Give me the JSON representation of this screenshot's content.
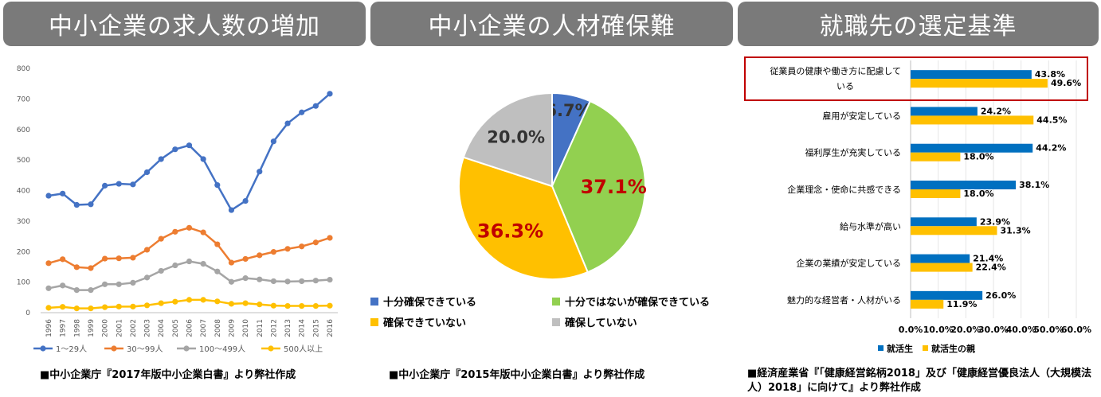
{
  "panels": [
    {
      "title": "中小企業の求人数の増加",
      "source": "■中小企業庁『2017年版中小企業白書』より弊社作成"
    },
    {
      "title": "中小企業の人材確保難",
      "source": "■中小企業庁『2015年版中小企業白書』より弊社作成"
    },
    {
      "title": "就職先の選定基準",
      "source": "■経済産業省『「健康経営銘柄2018」及び「健康経営優良法人（大規模法人）2018」に向けて』より弊社作成"
    }
  ],
  "chart_data": [
    {
      "type": "line",
      "x": [
        "1996",
        "1997",
        "1998",
        "1999",
        "2000",
        "2001",
        "2002",
        "2003",
        "2004",
        "2005",
        "2006",
        "2007",
        "2008",
        "2009",
        "2010",
        "2011",
        "2012",
        "2013",
        "2014",
        "2015",
        "2016"
      ],
      "ylim": [
        0,
        800
      ],
      "yticks": [
        0,
        100,
        200,
        300,
        400,
        500,
        600,
        700,
        800
      ],
      "grid": false,
      "legend": "bottom",
      "series": [
        {
          "name": "1〜29人",
          "color": "#4472c4",
          "values": [
            383,
            390,
            353,
            355,
            416,
            422,
            420,
            460,
            503,
            535,
            548,
            503,
            418,
            336,
            366,
            462,
            561,
            620,
            656,
            677,
            717
          ]
        },
        {
          "name": "30〜99人",
          "color": "#ed7d31",
          "values": [
            162,
            175,
            149,
            146,
            177,
            178,
            180,
            206,
            242,
            265,
            278,
            263,
            224,
            164,
            176,
            188,
            199,
            209,
            217,
            230,
            245
          ]
        },
        {
          "name": "100〜499人",
          "color": "#a5a5a5",
          "values": [
            80,
            89,
            74,
            74,
            93,
            93,
            98,
            115,
            137,
            155,
            168,
            160,
            135,
            101,
            113,
            109,
            103,
            102,
            103,
            105,
            108
          ]
        },
        {
          "name": "500人以上",
          "color": "#ffc000",
          "values": [
            16,
            19,
            14,
            14,
            18,
            20,
            20,
            24,
            31,
            36,
            42,
            42,
            37,
            29,
            31,
            27,
            23,
            22,
            22,
            22,
            23
          ]
        }
      ]
    },
    {
      "type": "pie",
      "legend": "bottom",
      "slices": [
        {
          "label": "十分確保できている",
          "value": 6.7,
          "display": "6.7%",
          "color": "#4472c4",
          "labelColor": "#333333"
        },
        {
          "label": "十分ではないが確保できている",
          "value": 37.1,
          "display": "37.1%",
          "color": "#92d050",
          "labelColor": "#c00000"
        },
        {
          "label": "確保できていない",
          "value": 36.3,
          "display": "36.3%",
          "color": "#ffc000",
          "labelColor": "#c00000"
        },
        {
          "label": "確保していない",
          "value": 20.0,
          "display": "20.0%",
          "color": "#bfbfbf",
          "labelColor": "#333333"
        }
      ]
    },
    {
      "type": "bar",
      "orientation": "horizontal",
      "xlim": [
        0,
        60
      ],
      "xticks": [
        "0.0%",
        "10.0%",
        "20.0%",
        "30.0%",
        "40.0%",
        "50.0%",
        "60.0%"
      ],
      "legend": "bottom",
      "highlight_color": "#c00000",
      "categories": [
        [
          "従業員の健康や働き方に配慮して",
          "いる"
        ],
        [
          "雇用が安定している"
        ],
        [
          "福利厚生が充実している"
        ],
        [
          "企業理念・使命に共感できる"
        ],
        [
          "給与水準が高い"
        ],
        [
          "企業の業績が安定している"
        ],
        [
          "魅力的な経営者・人材がいる"
        ]
      ],
      "series": [
        {
          "name": "就活生",
          "color": "#0070c0",
          "values": [
            43.8,
            24.2,
            44.2,
            38.1,
            23.9,
            21.4,
            26.0
          ],
          "labels": [
            "43.8%",
            "24.2%",
            "44.2%",
            "38.1%",
            "23.9%",
            "21.4%",
            "26.0%"
          ]
        },
        {
          "name": "就活生の親",
          "color": "#ffc000",
          "values": [
            49.6,
            44.5,
            18.0,
            18.0,
            31.3,
            22.4,
            11.9
          ],
          "labels": [
            "49.6%",
            "44.5%",
            "18.0%",
            "18.0%",
            "31.3%",
            "22.4%",
            "11.9%"
          ]
        }
      ]
    }
  ]
}
